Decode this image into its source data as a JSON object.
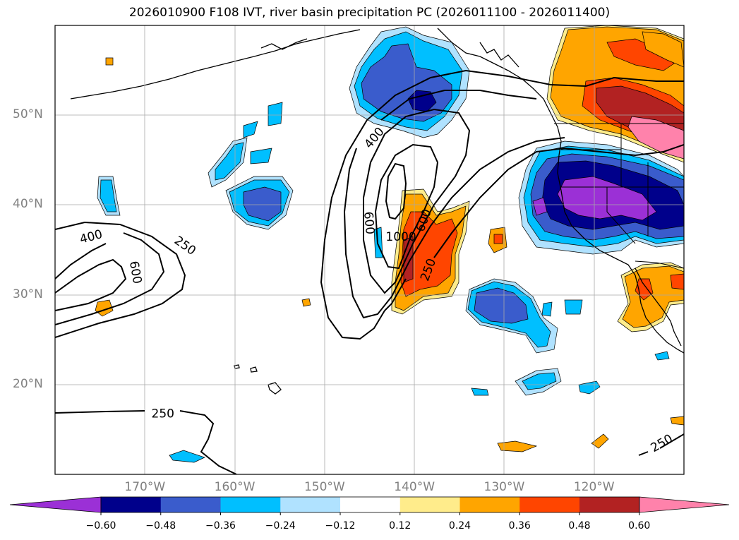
{
  "title": "2026010900 F108 IVT, river basin precipitation PC (2026011100 - 2026011400)",
  "lat_labels": [
    {
      "text": "50°N",
      "lat": 50
    },
    {
      "text": "40°N",
      "lat": 40
    },
    {
      "text": "30°N",
      "lat": 30
    },
    {
      "text": "20°N",
      "lat": 20
    }
  ],
  "lon_labels": [
    {
      "text": "170°W",
      "lon": -170
    },
    {
      "text": "160°W",
      "lon": -160
    },
    {
      "text": "150°W",
      "lon": -150
    },
    {
      "text": "140°W",
      "lon": -140
    },
    {
      "text": "130°W",
      "lon": -130
    },
    {
      "text": "120°W",
      "lon": -120
    }
  ],
  "map_extent": {
    "lon_min": -180,
    "lon_max": -110,
    "lat_min": 10,
    "lat_max": 60
  },
  "colorbar": {
    "colors": [
      "#9b30d6",
      "#00008b",
      "#3a5ccc",
      "#00bfff",
      "#b0e2ff",
      "#ffffff",
      "#ffec8b",
      "#ffa500",
      "#ff4500",
      "#b22222",
      "#ff82ab"
    ],
    "tick_labels": [
      "−0.60",
      "−0.48",
      "−0.36",
      "−0.24",
      "−0.12",
      "0.12",
      "0.24",
      "0.36",
      "0.48",
      "0.60"
    ]
  },
  "ivt_contour_labels": [
    {
      "text": "400",
      "lon": -176,
      "lat": 36.5,
      "rot": -15
    },
    {
      "text": "250",
      "lon": -165.5,
      "lat": 35.5,
      "rot": 35
    },
    {
      "text": "600",
      "lon": -171,
      "lat": 32.5,
      "rot": 80
    },
    {
      "text": "250",
      "lon": -168,
      "lat": 16.8,
      "rot": 0
    },
    {
      "text": "400",
      "lon": -144.5,
      "lat": 47.5,
      "rot": -50
    },
    {
      "text": "600",
      "lon": -145,
      "lat": 38,
      "rot": 85
    },
    {
      "text": "1000",
      "lon": -141.5,
      "lat": 36.5,
      "rot": 0
    },
    {
      "text": "600",
      "lon": -139,
      "lat": 38.3,
      "rot": -70
    },
    {
      "text": "250",
      "lon": -138.5,
      "lat": 32.8,
      "rot": -70
    },
    {
      "text": "250",
      "lon": -112.5,
      "lat": 13.5,
      "rot": -30
    }
  ]
}
